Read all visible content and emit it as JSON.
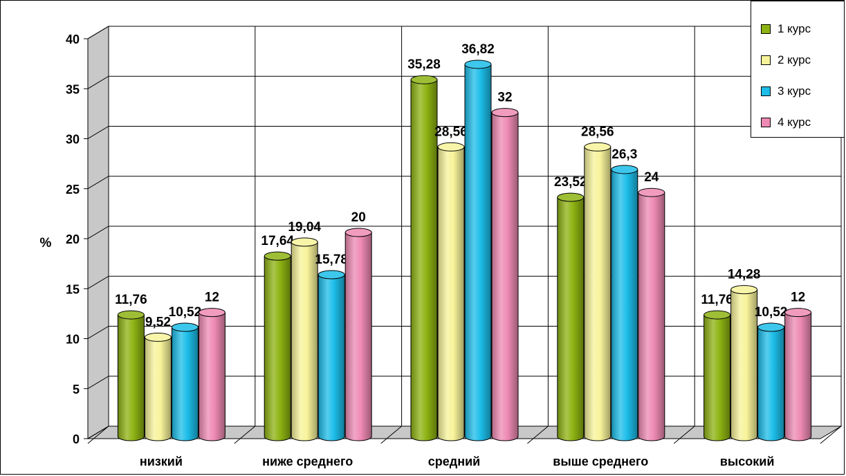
{
  "chart_data": {
    "type": "bar",
    "categories": [
      "низкий",
      "ниже среднего",
      "средний",
      "выше среднего",
      "высокий"
    ],
    "series": [
      {
        "name": "1 курс",
        "values": [
          11.76,
          17.64,
          35.28,
          23.52,
          11.76
        ],
        "labels": [
          "11,76",
          "17,64",
          "35,28",
          "23,52",
          "11,76"
        ],
        "color": "#8db312"
      },
      {
        "name": "2 курс",
        "values": [
          9.52,
          19.04,
          28.56,
          28.56,
          14.28
        ],
        "labels": [
          "9,52",
          "19,04",
          "28,56",
          "28,56",
          "14,28"
        ],
        "color": "#f7f39a"
      },
      {
        "name": "3 курс",
        "values": [
          10.52,
          15.78,
          36.82,
          26.3,
          10.52
        ],
        "labels": [
          "10,52",
          "15,78",
          "36,82",
          "26,3",
          "10,52"
        ],
        "color": "#1cbde9"
      },
      {
        "name": "4 курс",
        "values": [
          12,
          20,
          32,
          24,
          12
        ],
        "labels": [
          "12",
          "20",
          "32",
          "24",
          "12"
        ],
        "color": "#ee8ab3"
      }
    ],
    "ylabel": "%",
    "ylim": [
      0,
      40
    ],
    "yticks": [
      0,
      5,
      10,
      15,
      20,
      25,
      30,
      35,
      40
    ],
    "grid": true,
    "legend_position": "top-right",
    "style": "3d-cylinder"
  }
}
